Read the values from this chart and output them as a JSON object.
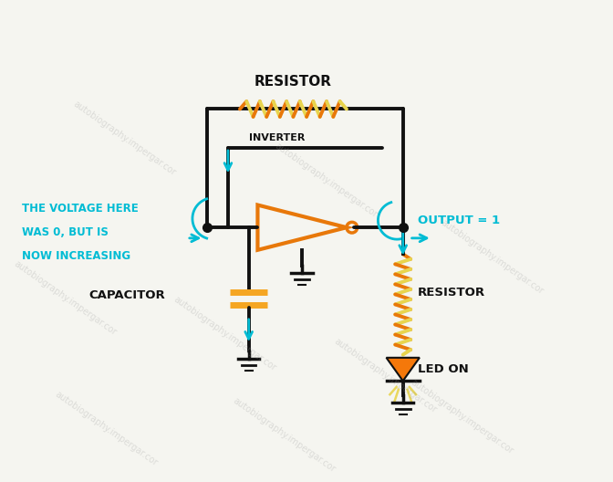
{
  "bg_color": "#f5f5f0",
  "wire_color": "#111111",
  "resistor_color_top": "#e8780a",
  "resistor_color_right": "#e8780a",
  "cyan_color": "#00bcd4",
  "cap_color": "#f5a623",
  "led_color": "#f5780a",
  "yellow_color": "#e8d44d",
  "text_dark": "#111111",
  "label_resistor_top": "RESISTOR",
  "label_inverter": "INVERTER",
  "label_capacitor": "CAPACITOR",
  "label_resistor_right": "RESISTOR",
  "label_led": "LED ON",
  "label_output": "OUTPUT = 1",
  "label_voltage_line1": "THE VOLTAGE HERE",
  "label_voltage_line2": "WAS 0, BUT IS",
  "label_voltage_line3": "NOW INCREASING",
  "watermark": "autobiography.impergar.cor"
}
